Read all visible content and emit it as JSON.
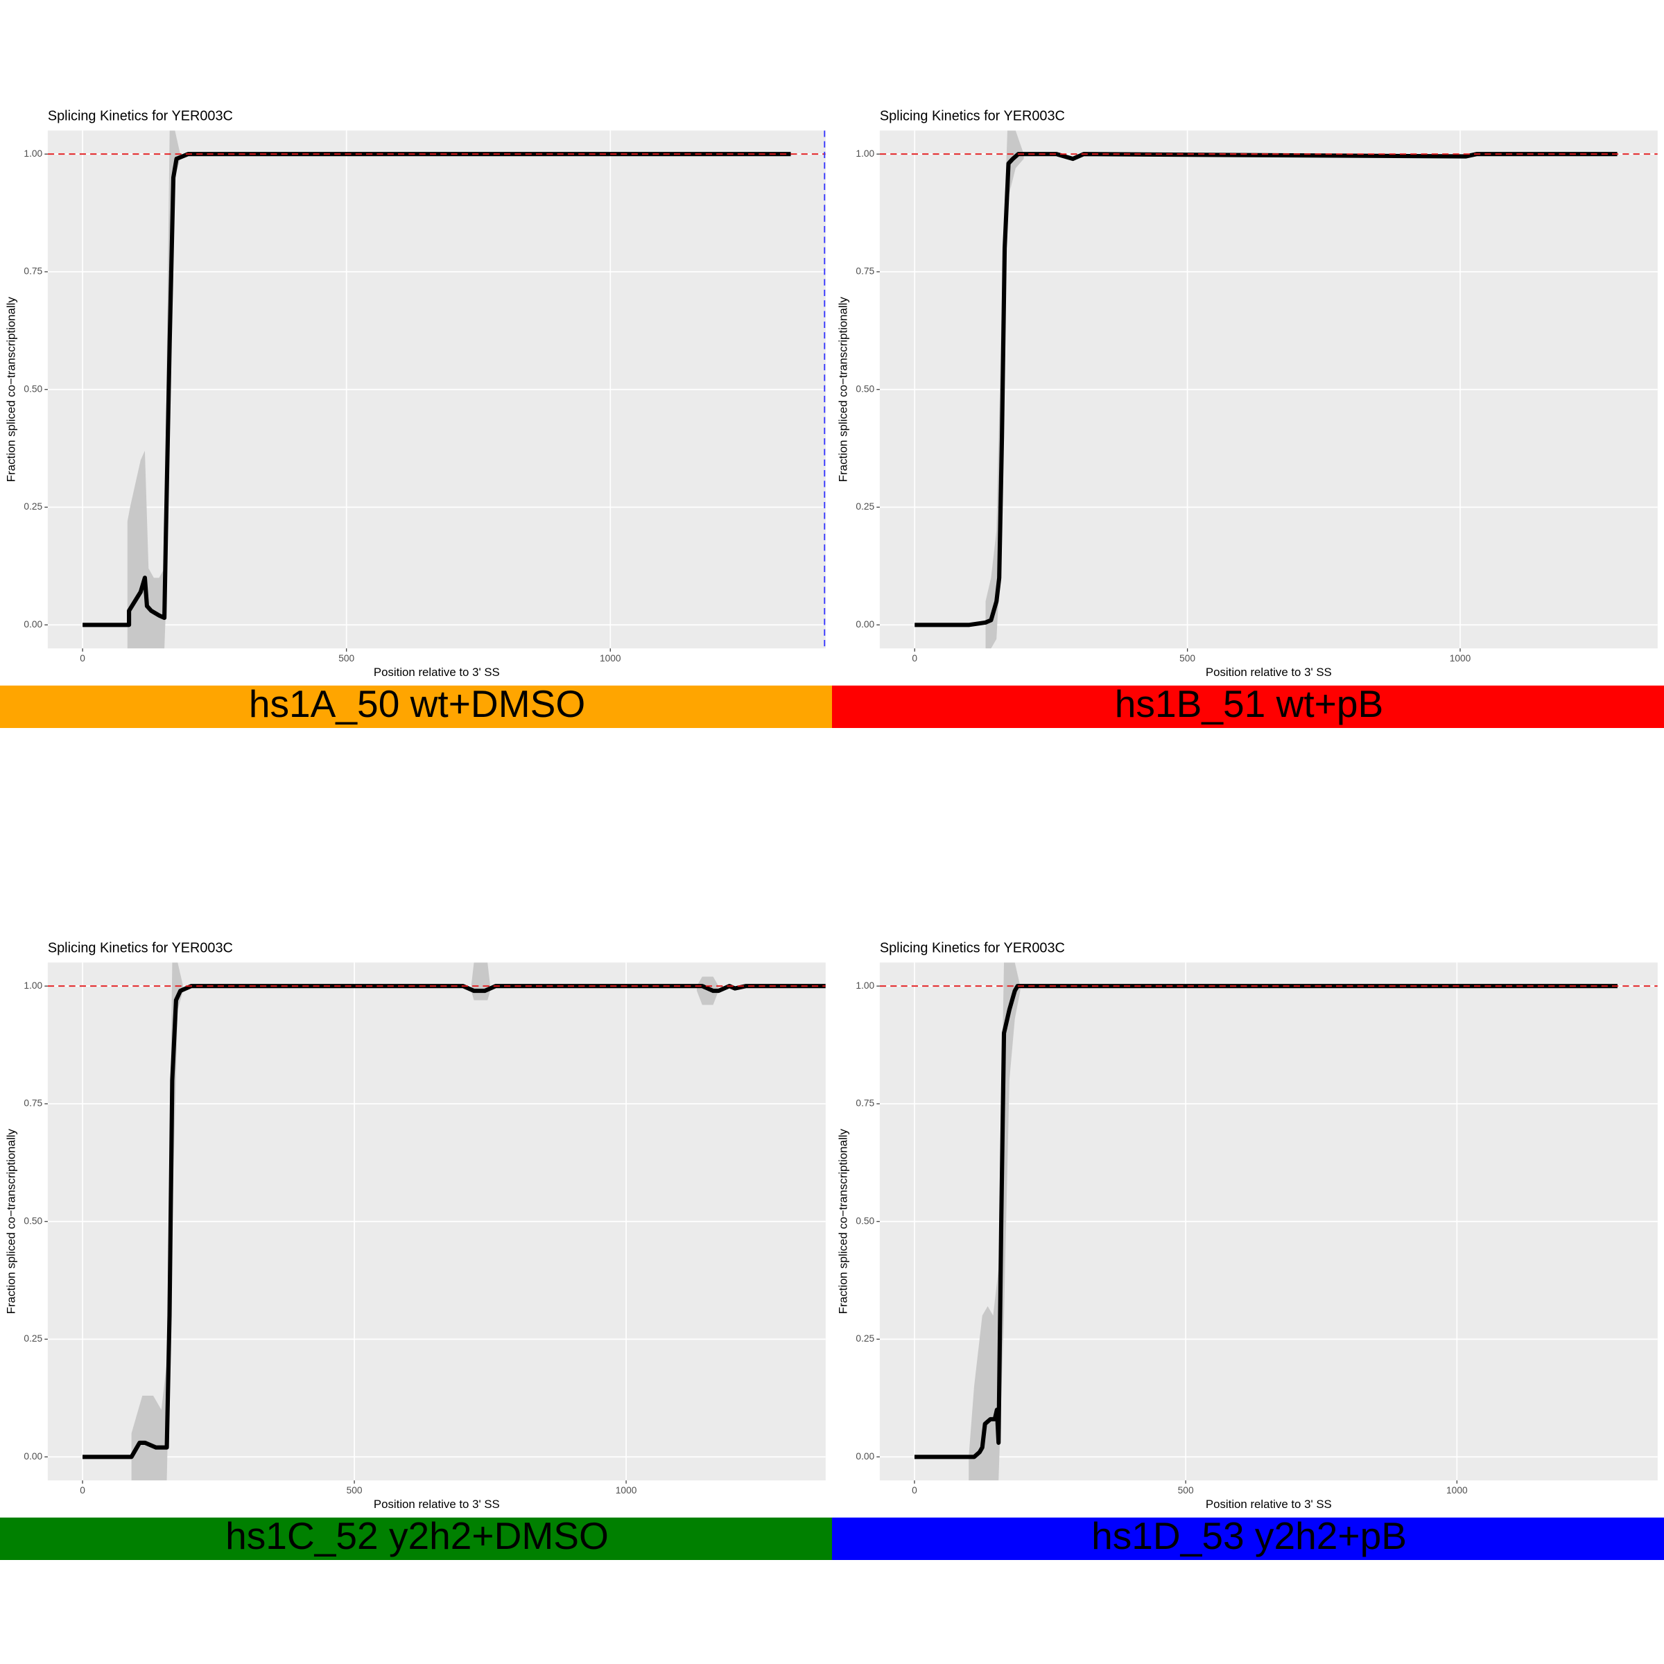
{
  "chart_data": [
    {
      "type": "line",
      "title": "Splicing Kinetics for YER003C",
      "xlabel": "Position relative to 3' SS",
      "ylabel": "Fraction spliced co−transcriptionally",
      "banner": "hs1A_50 wt+DMSO",
      "banner_color": "#ffa500",
      "xlim": [
        -66,
        1408
      ],
      "xticks": [
        0,
        500,
        1000
      ],
      "ylim": [
        -0.05,
        1.05
      ],
      "yticks": [
        {
          "value": 0,
          "label": "0.00"
        },
        {
          "value": 0.25,
          "label": "0.25"
        },
        {
          "value": 0.5,
          "label": "0.50"
        },
        {
          "value": 0.75,
          "label": "0.75"
        },
        {
          "value": 1,
          "label": "1.00"
        }
      ],
      "grid": true,
      "hline": {
        "value": 1,
        "color": "#e41a1c"
      },
      "vline": {
        "value": 1406,
        "color": "#3333ff"
      },
      "band": {
        "color": "#c8c8c8",
        "x": [
          85,
          90,
          100,
          110,
          118,
          125,
          135,
          145,
          155,
          160,
          165,
          175,
          185
        ],
        "lower": [
          -0.05,
          -0.05,
          -0.05,
          -0.05,
          -0.05,
          -0.05,
          -0.05,
          -0.05,
          -0.05,
          0.1,
          0.6,
          0.95,
          0.99
        ],
        "upper": [
          0.22,
          0.25,
          0.3,
          0.35,
          0.37,
          0.12,
          0.1,
          0.1,
          0.12,
          0.6,
          1.05,
          1.05,
          1.0
        ]
      },
      "series": [
        {
          "color": "#000000",
          "x": [
            0,
            88,
            88,
            110,
            118,
            122,
            130,
            145,
            155,
            158,
            165,
            172,
            178,
            200,
            1342
          ],
          "values": [
            0,
            0,
            0.03,
            0.07,
            0.1,
            0.04,
            0.03,
            0.02,
            0.015,
            0.2,
            0.6,
            0.95,
            0.99,
            1,
            1
          ]
        }
      ]
    },
    {
      "type": "line",
      "title": "Splicing Kinetics for YER003C",
      "xlabel": "Position relative to 3' SS",
      "ylabel": "Fraction spliced co−transcriptionally",
      "banner": "hs1B_51 wt+pB",
      "banner_color": "#ff0000",
      "xlim": [
        -64,
        1362
      ],
      "xticks": [
        0,
        500,
        1000
      ],
      "ylim": [
        -0.05,
        1.05
      ],
      "yticks": [
        {
          "value": 0,
          "label": "0.00"
        },
        {
          "value": 0.25,
          "label": "0.25"
        },
        {
          "value": 0.5,
          "label": "0.50"
        },
        {
          "value": 0.75,
          "label": "0.75"
        },
        {
          "value": 1,
          "label": "1.00"
        }
      ],
      "grid": true,
      "hline": {
        "value": 1,
        "color": "#e41a1c"
      },
      "band": {
        "color": "#c8c8c8",
        "x": [
          130,
          140,
          150,
          160,
          170,
          185,
          200
        ],
        "lower": [
          -0.05,
          -0.05,
          -0.03,
          0.2,
          0.9,
          0.97,
          0.99
        ],
        "upper": [
          0.05,
          0.1,
          0.2,
          0.7,
          1.05,
          1.05,
          1.0
        ]
      },
      "series": [
        {
          "color": "#000000",
          "x": [
            0,
            100,
            130,
            140,
            145,
            150,
            155,
            160,
            165,
            172,
            180,
            190,
            200,
            260,
            290,
            310,
            1010,
            1030,
            1288
          ],
          "values": [
            0,
            0,
            0.005,
            0.01,
            0.03,
            0.05,
            0.1,
            0.4,
            0.8,
            0.98,
            0.99,
            1,
            1,
            1,
            0.99,
            1,
            0.995,
            1,
            1
          ]
        }
      ]
    },
    {
      "type": "line",
      "title": "Splicing Kinetics for YER003C",
      "xlabel": "Position relative to 3' SS",
      "ylabel": "Fraction spliced co−transcriptionally",
      "banner": "hs1C_52 y2h2+DMSO",
      "banner_color": "#008000",
      "xlim": [
        -64,
        1367
      ],
      "xticks": [
        0,
        500,
        1000
      ],
      "ylim": [
        -0.05,
        1.05
      ],
      "yticks": [
        {
          "value": 0,
          "label": "0.00"
        },
        {
          "value": 0.25,
          "label": "0.25"
        },
        {
          "value": 0.5,
          "label": "0.50"
        },
        {
          "value": 0.75,
          "label": "0.75"
        },
        {
          "value": 1,
          "label": "1.00"
        }
      ],
      "grid": true,
      "hline": {
        "value": 1,
        "color": "#e41a1c"
      },
      "band": {
        "color": "#c8c8c8",
        "x": [
          90,
          110,
          130,
          145,
          155,
          165,
          175,
          185,
          null,
          715,
          720,
          745,
          750,
          null,
          1130,
          1140,
          1160,
          1170
        ],
        "lower": [
          -0.05,
          -0.05,
          -0.05,
          -0.05,
          -0.05,
          0.5,
          0.95,
          0.99,
          null,
          0.99,
          0.97,
          0.97,
          0.99,
          null,
          0.99,
          0.96,
          0.96,
          0.99
        ],
        "upper": [
          0.05,
          0.13,
          0.13,
          0.1,
          0.2,
          1.05,
          1.05,
          1.0,
          null,
          1.0,
          1.05,
          1.05,
          1.0,
          null,
          1.0,
          1.02,
          1.02,
          1.0
        ]
      },
      "series": [
        {
          "color": "#000000",
          "x": [
            0,
            90,
            95,
            105,
            115,
            125,
            135,
            145,
            155,
            160,
            165,
            172,
            180,
            200,
            700,
            720,
            740,
            760,
            1140,
            1160,
            1170,
            1190,
            1200,
            1220,
            1367
          ],
          "values": [
            0,
            0,
            0.01,
            0.03,
            0.03,
            0.025,
            0.02,
            0.02,
            0.02,
            0.3,
            0.8,
            0.97,
            0.99,
            1,
            1,
            0.99,
            0.99,
            1,
            1,
            0.99,
            0.99,
            1,
            0.995,
            1,
            1
          ]
        }
      ]
    },
    {
      "type": "line",
      "title": "Splicing Kinetics for YER003C",
      "xlabel": "Position relative to 3' SS",
      "ylabel": "Fraction spliced co−transcriptionally",
      "banner": "hs1D_53 y2h2+pB",
      "banner_color": "#0000ff",
      "xlim": [
        -64,
        1370
      ],
      "xticks": [
        0,
        500,
        1000
      ],
      "ylim": [
        -0.05,
        1.05
      ],
      "yticks": [
        {
          "value": 0,
          "label": "0.00"
        },
        {
          "value": 0.25,
          "label": "0.25"
        },
        {
          "value": 0.5,
          "label": "0.50"
        },
        {
          "value": 0.75,
          "label": "0.75"
        },
        {
          "value": 1,
          "label": "1.00"
        }
      ],
      "grid": true,
      "hline": {
        "value": 1,
        "color": "#e41a1c"
      },
      "band": {
        "color": "#c8c8c8",
        "x": [
          100,
          110,
          125,
          135,
          145,
          155,
          165,
          175,
          185,
          195
        ],
        "lower": [
          -0.05,
          -0.05,
          -0.05,
          -0.05,
          -0.05,
          -0.05,
          0.3,
          0.8,
          0.93,
          0.99
        ],
        "upper": [
          0,
          0.15,
          0.3,
          0.32,
          0.3,
          0.4,
          1.05,
          1.05,
          1.05,
          1.0
        ]
      },
      "series": [
        {
          "color": "#000000",
          "x": [
            0,
            100,
            110,
            120,
            125,
            130,
            140,
            148,
            152,
            155,
            160,
            165,
            175,
            180,
            185,
            190,
            200,
            1296
          ],
          "values": [
            0,
            0,
            0,
            0.01,
            0.02,
            0.07,
            0.08,
            0.08,
            0.1,
            0.03,
            0.5,
            0.9,
            0.95,
            0.97,
            0.99,
            1,
            1,
            1
          ]
        }
      ]
    }
  ]
}
